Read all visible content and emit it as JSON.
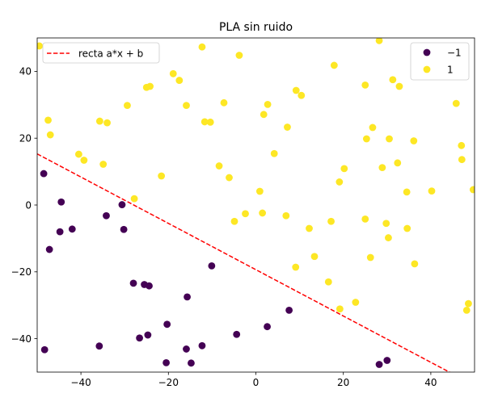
{
  "chart_data": {
    "type": "scatter",
    "title": "PLA sin ruido",
    "xlabel": "",
    "ylabel": "",
    "xlim": [
      -50,
      50
    ],
    "ylim": [
      -50,
      50
    ],
    "xticks": [
      -40,
      -20,
      0,
      20,
      40
    ],
    "yticks": [
      -40,
      -20,
      0,
      20,
      40
    ],
    "xtick_labels": [
      "−40",
      "−20",
      "0",
      "20",
      "40"
    ],
    "ytick_labels": [
      "−40",
      "−20",
      "0",
      "20",
      "40"
    ],
    "grid": false,
    "line": {
      "name": "recta a*x + b",
      "color": "#ff0000",
      "style": "dashed",
      "x": [
        -50,
        50
      ],
      "y": [
        15.3,
        -54.0
      ]
    },
    "series": [
      {
        "name": "−1",
        "color": "#440154",
        "points": [
          [
            -48.5,
            9.4
          ],
          [
            -44.5,
            0.9
          ],
          [
            -44.8,
            -8.0
          ],
          [
            -42.0,
            -7.2
          ],
          [
            -47.2,
            -13.3
          ],
          [
            -34.2,
            -3.2
          ],
          [
            -30.6,
            0.1
          ],
          [
            -30.2,
            -7.3
          ],
          [
            -28.0,
            -23.4
          ],
          [
            -25.5,
            -23.8
          ],
          [
            -24.4,
            -24.2
          ],
          [
            -48.3,
            -43.3
          ],
          [
            -35.8,
            -42.2
          ],
          [
            -26.6,
            -39.8
          ],
          [
            -24.7,
            -38.9
          ],
          [
            -20.3,
            -35.7
          ],
          [
            -15.7,
            -27.5
          ],
          [
            -10.1,
            -18.2
          ],
          [
            -20.5,
            -47.2
          ],
          [
            -15.9,
            -43.1
          ],
          [
            -14.8,
            -47.3
          ],
          [
            -12.3,
            -42.1
          ],
          [
            -4.4,
            -38.7
          ],
          [
            2.6,
            -36.4
          ],
          [
            7.6,
            -31.5
          ],
          [
            28.2,
            -47.7
          ],
          [
            30.0,
            -46.5
          ]
        ]
      },
      {
        "name": "1",
        "color": "#fde725",
        "points": [
          [
            -49.5,
            47.6
          ],
          [
            -47.5,
            25.4
          ],
          [
            -47.0,
            21.0
          ],
          [
            -40.5,
            15.2
          ],
          [
            -39.3,
            13.4
          ],
          [
            -35.7,
            25.1
          ],
          [
            -34.0,
            24.6
          ],
          [
            -34.9,
            12.2
          ],
          [
            -29.4,
            29.8
          ],
          [
            -25.0,
            35.2
          ],
          [
            -24.2,
            35.5
          ],
          [
            -18.9,
            39.3
          ],
          [
            -17.5,
            37.3
          ],
          [
            -15.9,
            29.8
          ],
          [
            -12.3,
            47.3
          ],
          [
            -11.7,
            24.9
          ],
          [
            -10.4,
            24.8
          ],
          [
            -8.4,
            11.7
          ],
          [
            -7.3,
            30.6
          ],
          [
            -3.8,
            44.8
          ],
          [
            -21.6,
            8.7
          ],
          [
            -27.8,
            1.9
          ],
          [
            -6.1,
            8.2
          ],
          [
            -4.9,
            -4.9
          ],
          [
            -2.4,
            -2.6
          ],
          [
            0.9,
            4.1
          ],
          [
            1.5,
            -2.4
          ],
          [
            1.8,
            27.1
          ],
          [
            2.7,
            30.1
          ],
          [
            4.2,
            15.4
          ],
          [
            6.9,
            -3.2
          ],
          [
            7.2,
            23.3
          ],
          [
            9.2,
            34.3
          ],
          [
            10.4,
            32.8
          ],
          [
            12.2,
            -7.0
          ],
          [
            13.4,
            -15.4
          ],
          [
            9.1,
            -18.6
          ],
          [
            16.6,
            -23.0
          ],
          [
            17.2,
            -4.9
          ],
          [
            17.9,
            41.8
          ],
          [
            19.1,
            6.9
          ],
          [
            20.2,
            10.9
          ],
          [
            19.2,
            -31.1
          ],
          [
            22.8,
            -29.1
          ],
          [
            25.0,
            35.9
          ],
          [
            25.3,
            19.8
          ],
          [
            25.0,
            -4.2
          ],
          [
            26.2,
            -15.7
          ],
          [
            26.7,
            23.2
          ],
          [
            28.2,
            49.2
          ],
          [
            28.9,
            11.2
          ],
          [
            29.8,
            -5.5
          ],
          [
            30.5,
            19.8
          ],
          [
            30.3,
            -9.8
          ],
          [
            31.3,
            37.5
          ],
          [
            32.4,
            12.6
          ],
          [
            32.8,
            35.5
          ],
          [
            34.5,
            3.9
          ],
          [
            34.6,
            -7.0
          ],
          [
            36.1,
            19.2
          ],
          [
            36.3,
            -17.6
          ],
          [
            40.2,
            4.2
          ],
          [
            45.8,
            30.4
          ],
          [
            47.0,
            17.8
          ],
          [
            47.1,
            13.6
          ],
          [
            48.2,
            -31.5
          ],
          [
            48.6,
            -29.5
          ],
          [
            49.7,
            4.6
          ]
        ]
      }
    ],
    "legends": [
      {
        "position": "upper left",
        "entries": [
          "recta a*x + b"
        ]
      },
      {
        "position": "upper right",
        "entries": [
          "−1",
          "1"
        ]
      }
    ]
  }
}
